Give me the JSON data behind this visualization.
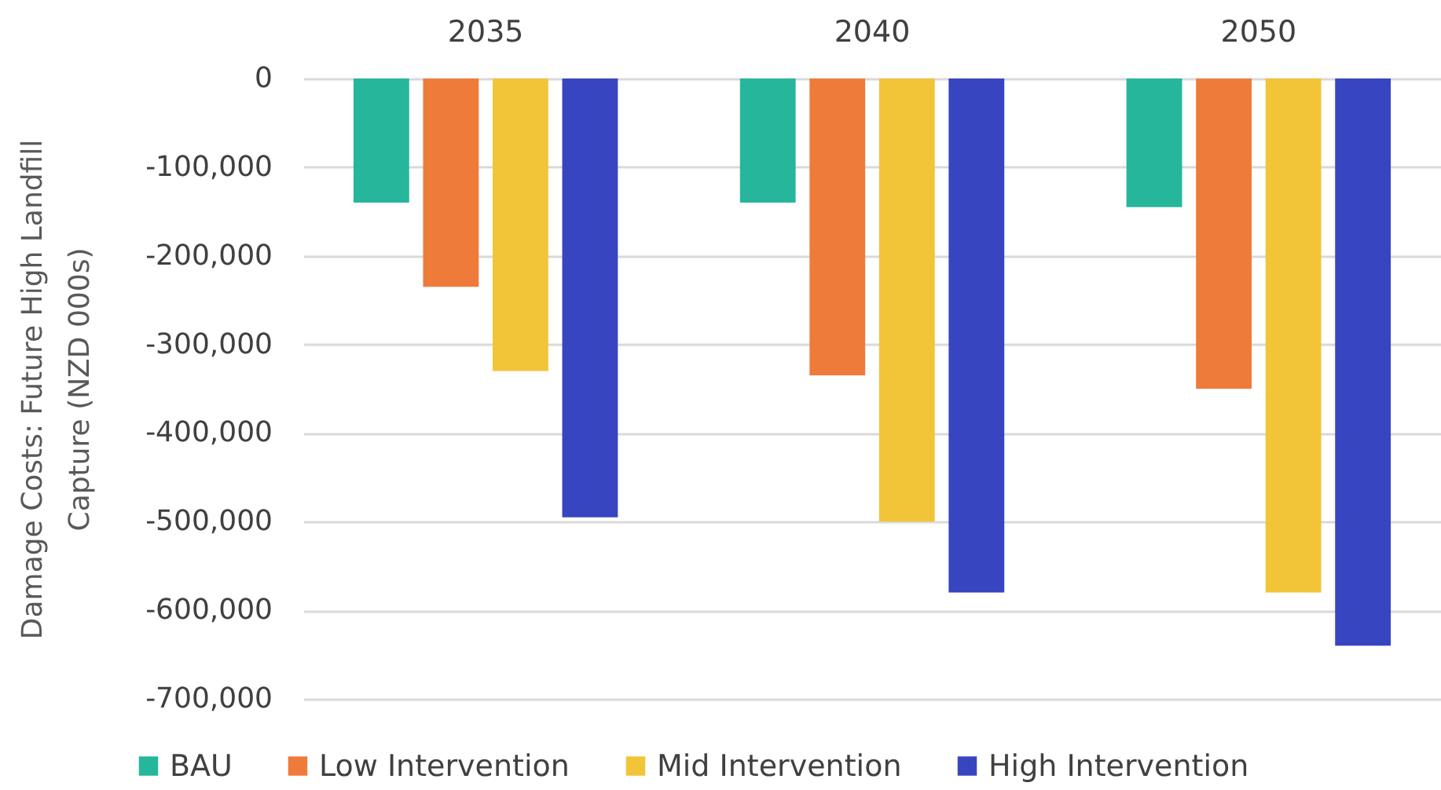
{
  "chart_data": {
    "type": "bar",
    "ylabel": "Damage Costs: Future High Landfill Capture (NZD 000s)",
    "categories": [
      "2035",
      "2040",
      "2050"
    ],
    "series": [
      {
        "name": "BAU",
        "color": "#26b69b",
        "values": [
          -140000,
          -140000,
          -145000
        ]
      },
      {
        "name": "Low Intervention",
        "color": "#ef7b3a",
        "values": [
          -235000,
          -335000,
          -350000
        ]
      },
      {
        "name": "Mid Intervention",
        "color": "#f2c438",
        "values": [
          -330000,
          -500000,
          -580000
        ]
      },
      {
        "name": "High Intervention",
        "color": "#3845c0",
        "values": [
          -495000,
          -580000,
          -640000
        ]
      }
    ],
    "ylim": [
      -700000,
      0
    ],
    "yticks": [
      0,
      {
        "value": -100000,
        "label": "-100,000"
      },
      {
        "value": -200000,
        "label": "-200,000"
      },
      {
        "value": -300000,
        "label": "-300,000"
      },
      {
        "value": -400000,
        "label": "-400,000"
      },
      {
        "value": -500000,
        "label": "-500,000"
      },
      {
        "value": -600000,
        "label": "-600,000"
      },
      {
        "value": -700000,
        "label": "-700,000"
      }
    ],
    "grid": "y",
    "legend": "bottom"
  }
}
